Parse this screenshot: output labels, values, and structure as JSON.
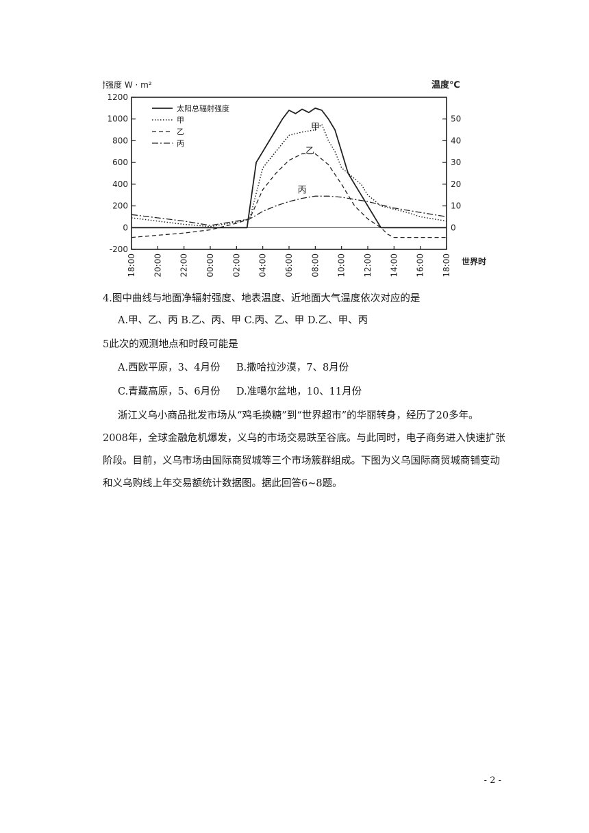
{
  "chart_data": {
    "type": "line",
    "ylabel_left": "辐射强度 W · m²",
    "ylabel_right": "温度℃",
    "xlabel": "世界时",
    "y_left_ticks": [
      "1200",
      "1000",
      "800",
      "600",
      "400",
      "200",
      "0",
      "-200"
    ],
    "y_left_range": [
      -200,
      1200
    ],
    "y_right_ticks": [
      "50",
      "40",
      "30",
      "20",
      "10",
      "0"
    ],
    "y_right_range": [
      -10,
      60
    ],
    "x_ticks": [
      "18:00",
      "20:00",
      "22:00",
      "00:00",
      "02:00",
      "04:00",
      "06:00",
      "08:00",
      "10:00",
      "12:00",
      "14:00",
      "16:00",
      "18:00"
    ],
    "x_range": [
      0,
      24
    ],
    "legend": [
      "太阳总辐射强度",
      "甲",
      "乙",
      "丙"
    ],
    "legend_position": "top-left",
    "series": [
      {
        "name": "太阳总辐射强度",
        "style": "solid",
        "axis": "left",
        "x": [
          0,
          2,
          4,
          6,
          7,
          8,
          8.8,
          9.5,
          10,
          10.5,
          11,
          11.5,
          12,
          12.5,
          13,
          13.5,
          14,
          14.5,
          15,
          15.5,
          16,
          16.5,
          17,
          17.5,
          18,
          19,
          20,
          21,
          22,
          24
        ],
        "y": [
          0,
          0,
          0,
          0,
          0,
          0,
          0,
          600,
          700,
          800,
          900,
          1000,
          1080,
          1050,
          1090,
          1060,
          1100,
          1080,
          1000,
          900,
          700,
          500,
          400,
          300,
          200,
          0,
          0,
          0,
          0,
          0
        ]
      },
      {
        "name": "甲",
        "style": "dotted",
        "axis": "left",
        "x": [
          0,
          2,
          4,
          6,
          7,
          8,
          9,
          10,
          11,
          12,
          13,
          14,
          14.5,
          15,
          15.5,
          16,
          16.5,
          17,
          17.5,
          18,
          18.5,
          19,
          20,
          21,
          22,
          24
        ],
        "y": [
          90,
          60,
          30,
          10,
          30,
          50,
          80,
          550,
          700,
          850,
          880,
          900,
          950,
          800,
          700,
          550,
          500,
          450,
          400,
          300,
          250,
          200,
          170,
          140,
          100,
          60
        ]
      },
      {
        "name": "乙",
        "style": "dashed",
        "axis": "left",
        "x": [
          0,
          2,
          4,
          6,
          7,
          8,
          9,
          10,
          11,
          12,
          13,
          14,
          15,
          16,
          17,
          18,
          19,
          19.5,
          20,
          21,
          22,
          24
        ],
        "y": [
          -90,
          -70,
          -50,
          -20,
          10,
          40,
          80,
          350,
          500,
          620,
          680,
          680,
          580,
          400,
          200,
          80,
          0,
          -60,
          -90,
          -90,
          -90,
          -90
        ]
      },
      {
        "name": "丙",
        "style": "dashdot",
        "axis": "left",
        "x": [
          0,
          2,
          4,
          6,
          8,
          9,
          10,
          11,
          12,
          13,
          14,
          15,
          16,
          17,
          18,
          19,
          20,
          21,
          22,
          24
        ],
        "y": [
          120,
          90,
          60,
          20,
          60,
          80,
          150,
          200,
          240,
          270,
          290,
          290,
          280,
          260,
          240,
          210,
          180,
          160,
          140,
          100
        ]
      },
      {
        "name": "",
        "style": "thin-solid",
        "axis": "left",
        "x": [
          0,
          2,
          4,
          6,
          8,
          10,
          12,
          14,
          16,
          18,
          20,
          22,
          24
        ],
        "y": [
          0,
          0,
          0,
          0,
          0,
          0,
          0,
          0,
          0,
          0,
          0,
          0,
          0
        ]
      }
    ],
    "annotations": [
      "甲",
      "乙",
      "丙"
    ]
  },
  "questions": {
    "q4": "4.图中曲线与地面净辐射强度、地表温度、近地面大气温度依次对应的是",
    "q4_options": "A.甲、乙、丙    B.乙、丙、甲    C.丙、乙、甲    D.乙、甲、丙",
    "q5": "5此次的观测地点和时段可能是",
    "q5_opt_a": "A.西欧平原，3、4月份",
    "q5_opt_b": "B.撒哈拉沙漠，7、8月份",
    "q5_opt_c": "C.青藏高原，5、6月份",
    "q5_opt_d": "D.准噶尔盆地，10、11月份"
  },
  "passage": {
    "line1": "浙江义乌小商品批发市场从“鸡毛换糖”到“世界超市”的华丽转身，经历了20多年。",
    "line2": "2008年，全球金融危机爆发，义乌的市场交易跌至谷底。与此同时，电子商务进入快速扩张",
    "line3": "阶段。目前，义乌市场由国际商贸城等三个市场簇群组成。下图为义乌国际商贸城商铺变动",
    "line4": "和义乌购线上年交易额统计数据图。据此回答6~8题。"
  },
  "page_number": "- 2 -"
}
